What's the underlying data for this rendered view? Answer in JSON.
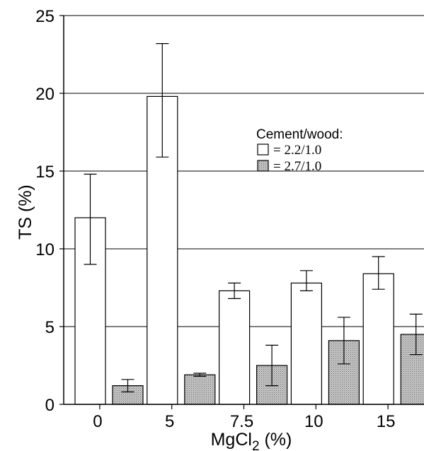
{
  "chart_data": {
    "type": "bar",
    "categories": [
      "0",
      "5",
      "7.5",
      "10",
      "15"
    ],
    "series": [
      {
        "name": "= 2.2/1.0",
        "values": [
          12.0,
          19.8,
          7.3,
          7.8,
          8.4
        ],
        "error_low": [
          9.0,
          15.9,
          6.8,
          7.3,
          7.4
        ],
        "error_high": [
          14.8,
          23.2,
          7.8,
          8.6,
          9.5
        ],
        "fill": "#ffffff"
      },
      {
        "name": "= 2.7/1.0",
        "values": [
          1.2,
          1.9,
          2.5,
          4.1,
          4.5
        ],
        "error_low": [
          0.8,
          1.8,
          1.2,
          2.6,
          3.2
        ],
        "error_high": [
          1.6,
          2.0,
          3.8,
          5.6,
          5.8
        ],
        "fill": "#bdbdbd"
      }
    ],
    "xlabel_main": "MgCl",
    "xlabel_sub": "2",
    "xlabel_unit": "(%)",
    "ylabel": "TS  (%)",
    "ylim": [
      0,
      25
    ],
    "yticks": [
      "0",
      "5",
      "10",
      "15",
      "20",
      "25"
    ],
    "grid": true,
    "legend_title": "Cement/wood:",
    "legend_position": "upper-right"
  }
}
